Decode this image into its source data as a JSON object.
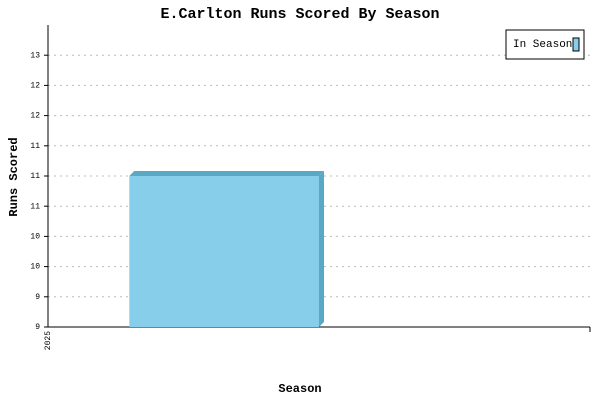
{
  "chart_data": {
    "type": "bar3d",
    "title": "E.Carlton Runs Scored By Season",
    "x_label": "Season",
    "y_label": "Runs Scored",
    "categories": [
      "2025"
    ],
    "series": [
      {
        "name": "In Season",
        "color": "#87ceeb",
        "values": [
          11
        ]
      }
    ],
    "ylim": [
      9,
      13
    ],
    "yticks": [
      {
        "value": 9,
        "label": "9"
      },
      {
        "value": 9.4,
        "label": "9"
      },
      {
        "value": 9.8,
        "label": "10"
      },
      {
        "value": 10.2,
        "label": "10"
      },
      {
        "value": 10.6,
        "label": "11"
      },
      {
        "value": 11,
        "label": "11"
      },
      {
        "value": 11.4,
        "label": "11"
      },
      {
        "value": 11.8,
        "label": "12"
      },
      {
        "value": 12.2,
        "label": "12"
      },
      {
        "value": 12.6,
        "label": "13"
      }
    ],
    "grid": true,
    "legend": "top-right"
  }
}
